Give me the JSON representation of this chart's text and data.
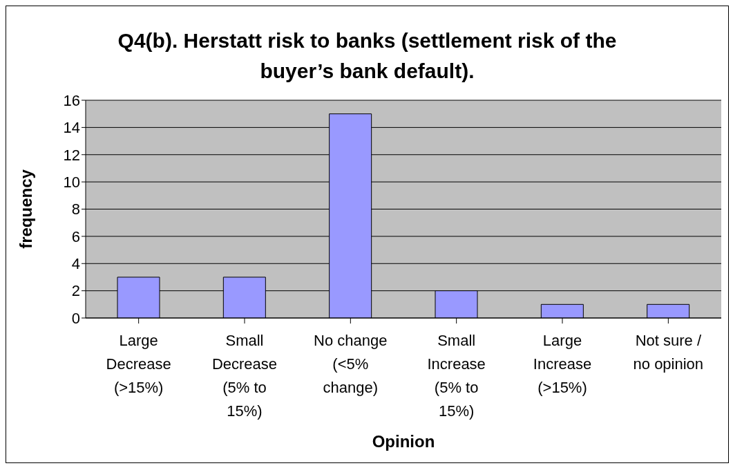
{
  "chart_data": {
    "type": "bar",
    "title": "Q4(b). Herstatt risk to banks (settlement risk of the buyer’s bank default).",
    "xlabel": "Opinion",
    "ylabel": "frequency",
    "categories": [
      "Large Decrease (>15%)",
      "Small Decrease (5% to 15%)",
      "No change (<5% change)",
      "Small Increase (5% to 15%)",
      "Large Increase (>15%)",
      "Not sure / no opinion"
    ],
    "values": [
      3,
      3,
      15,
      2,
      1,
      1
    ],
    "color": "#9999ff",
    "ylim": [
      0,
      16
    ],
    "yticks": [
      0,
      2,
      4,
      6,
      8,
      10,
      12,
      14,
      16
    ],
    "grid": "y"
  }
}
